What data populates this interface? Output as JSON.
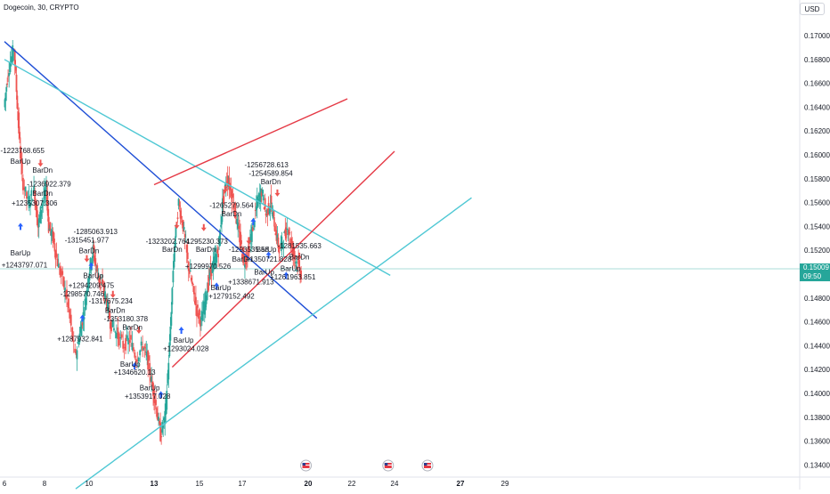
{
  "header": {
    "title": "Dogecoin, 30, CRYPTO",
    "currency": "USD"
  },
  "price_tag": {
    "price": "0.15009",
    "countdown": "09:50"
  },
  "colors": {
    "up": "#26a69a",
    "down": "#ef5350",
    "blue_line": "#1f4fd6",
    "cyan_line": "#4fc8d4",
    "red_line": "#e53945",
    "arrow_up": "#2962ff",
    "arrow_down": "#ef5350"
  },
  "chart_data": {
    "type": "line",
    "title": "Dogecoin, 30, CRYPTO",
    "xlabel": "",
    "ylabel": "",
    "x_ticks": [
      "6",
      "8",
      "10",
      "13",
      "15",
      "17",
      "20",
      "22",
      "24",
      "27",
      "29"
    ],
    "y_ticks": [
      "0.17000",
      "0.16800",
      "0.16600",
      "0.16400",
      "0.16200",
      "0.16000",
      "0.15800",
      "0.15600",
      "0.15400",
      "0.15200",
      "0.15000",
      "0.14800",
      "0.14600",
      "0.14400",
      "0.14200",
      "0.14000",
      "0.13800",
      "0.13600",
      "0.13400"
    ],
    "ylim": [
      0.133,
      0.1712
    ],
    "price_path_days": [
      [
        6.0,
        0.164
      ],
      [
        6.2,
        0.167
      ],
      [
        6.5,
        0.169
      ],
      [
        6.7,
        0.163
      ],
      [
        6.9,
        0.158
      ],
      [
        7.2,
        0.156
      ],
      [
        7.5,
        0.157
      ],
      [
        7.7,
        0.154
      ],
      [
        7.9,
        0.156
      ],
      [
        8.1,
        0.157
      ],
      [
        8.2,
        0.154
      ],
      [
        8.4,
        0.153
      ],
      [
        8.6,
        0.151
      ],
      [
        8.9,
        0.149
      ],
      [
        9.1,
        0.147
      ],
      [
        9.4,
        0.143
      ],
      [
        9.6,
        0.145
      ],
      [
        9.8,
        0.147
      ],
      [
        10.0,
        0.15
      ],
      [
        10.2,
        0.152
      ],
      [
        10.4,
        0.15
      ],
      [
        10.6,
        0.149
      ],
      [
        10.8,
        0.148
      ],
      [
        11.0,
        0.146
      ],
      [
        11.3,
        0.145
      ],
      [
        11.6,
        0.144
      ],
      [
        11.9,
        0.1445
      ],
      [
        12.2,
        0.143
      ],
      [
        12.5,
        0.144
      ],
      [
        12.7,
        0.143
      ],
      [
        12.9,
        0.141
      ],
      [
        13.1,
        0.139
      ],
      [
        13.3,
        0.1365
      ],
      [
        13.5,
        0.138
      ],
      [
        13.7,
        0.144
      ],
      [
        13.9,
        0.152
      ],
      [
        14.1,
        0.156
      ],
      [
        14.3,
        0.154
      ],
      [
        14.5,
        0.151
      ],
      [
        14.7,
        0.149
      ],
      [
        14.9,
        0.147
      ],
      [
        15.1,
        0.146
      ],
      [
        15.3,
        0.148
      ],
      [
        15.5,
        0.15
      ],
      [
        15.7,
        0.151
      ],
      [
        15.9,
        0.152
      ],
      [
        16.1,
        0.156
      ],
      [
        16.3,
        0.158
      ],
      [
        16.5,
        0.157
      ],
      [
        16.7,
        0.155
      ],
      [
        16.9,
        0.153
      ],
      [
        17.1,
        0.151
      ],
      [
        17.3,
        0.152
      ],
      [
        17.5,
        0.154
      ],
      [
        17.7,
        0.156
      ],
      [
        17.9,
        0.157
      ],
      [
        18.1,
        0.155
      ],
      [
        18.3,
        0.156
      ],
      [
        18.5,
        0.154
      ],
      [
        18.7,
        0.152
      ],
      [
        18.9,
        0.153
      ],
      [
        19.1,
        0.154
      ],
      [
        19.3,
        0.152
      ],
      [
        19.5,
        0.151
      ],
      [
        19.7,
        0.15
      ]
    ],
    "trendlines_days": [
      {
        "color": "blue",
        "from": [
          6.0,
          0.1695
        ],
        "to": [
          20.4,
          0.1463
        ]
      },
      {
        "color": "cyan",
        "from": [
          6.0,
          0.168
        ],
        "to": [
          23.8,
          0.1499
        ]
      },
      {
        "color": "cyan",
        "from": [
          9.4,
          0.132
        ],
        "to": [
          27.5,
          0.1564
        ]
      },
      {
        "color": "red",
        "from": [
          13.0,
          0.1575
        ],
        "to": [
          21.8,
          0.1647
        ]
      },
      {
        "color": "red",
        "from": [
          13.8,
          0.1422
        ],
        "to": [
          24.0,
          0.1603
        ]
      }
    ],
    "annotations": [
      {
        "text": "-1223768.655",
        "x": 6.9,
        "y": 0.16015
      },
      {
        "text": "BarUp",
        "x": 6.8,
        "y": 0.15925
      },
      {
        "text": "BarDn",
        "x": 7.9,
        "y": 0.1585
      },
      {
        "text": "-1236922.379",
        "x": 8.2,
        "y": 0.15735
      },
      {
        "text": "BarDn",
        "x": 7.9,
        "y": 0.15655
      },
      {
        "text": "+1235307.306",
        "x": 7.5,
        "y": 0.15575
      },
      {
        "text": "BarUp",
        "x": 6.8,
        "y": 0.15155
      },
      {
        "text": "+1243797.071",
        "x": 7.0,
        "y": 0.15055
      },
      {
        "text": "-1285063.913",
        "x": 10.3,
        "y": 0.15335
      },
      {
        "text": "-1315451.977",
        "x": 9.9,
        "y": 0.15265
      },
      {
        "text": "BarDn",
        "x": 10.0,
        "y": 0.15175
      },
      {
        "text": "BarUp",
        "x": 10.2,
        "y": 0.14965
      },
      {
        "text": "+1294209.475",
        "x": 10.1,
        "y": 0.14885
      },
      {
        "text": "-1298570.746",
        "x": 9.7,
        "y": 0.14815
      },
      {
        "text": "-1317675.234",
        "x": 11.0,
        "y": 0.14755
      },
      {
        "text": "BarDn",
        "x": 11.2,
        "y": 0.14675
      },
      {
        "text": "-1353180.378",
        "x": 11.7,
        "y": 0.14605
      },
      {
        "text": "BarDn",
        "x": 12.0,
        "y": 0.14535
      },
      {
        "text": "+1287932.841",
        "x": 9.6,
        "y": 0.14435
      },
      {
        "text": "BarUp",
        "x": 11.9,
        "y": 0.14225
      },
      {
        "text": "+1346620.13",
        "x": 12.1,
        "y": 0.14155
      },
      {
        "text": "BarUp",
        "x": 12.8,
        "y": 0.14025
      },
      {
        "text": "+1353917.028",
        "x": 12.7,
        "y": 0.13955
      },
      {
        "text": "-1323202.764",
        "x": 13.6,
        "y": 0.15255
      },
      {
        "text": "BarDn",
        "x": 13.8,
        "y": 0.15185
      },
      {
        "text": "-1295230.373",
        "x": 15.3,
        "y": 0.15255
      },
      {
        "text": "BarDn",
        "x": 15.3,
        "y": 0.15185
      },
      {
        "text": "-1265279.564",
        "x": 16.5,
        "y": 0.15555
      },
      {
        "text": "BarDn",
        "x": 16.5,
        "y": 0.15485
      },
      {
        "text": "+1299970.526",
        "x": 15.4,
        "y": 0.15045
      },
      {
        "text": "BarUp",
        "x": 16.0,
        "y": 0.14865
      },
      {
        "text": "+1279152.492",
        "x": 16.5,
        "y": 0.14795
      },
      {
        "text": "BarUp",
        "x": 14.3,
        "y": 0.14425
      },
      {
        "text": "+1293024.028",
        "x": 14.4,
        "y": 0.14355
      },
      {
        "text": "-1256728.613",
        "x": 18.1,
        "y": 0.15895
      },
      {
        "text": "-1254589.854",
        "x": 18.3,
        "y": 0.15825
      },
      {
        "text": "BarDn",
        "x": 18.3,
        "y": 0.15755
      },
      {
        "text": "-1293535.58",
        "x": 17.3,
        "y": 0.15185
      },
      {
        "text": "BarUp",
        "x": 18.1,
        "y": 0.15185
      },
      {
        "text": "BarDn",
        "x": 17.0,
        "y": 0.15105
      },
      {
        "text": "+1350721.828",
        "x": 18.2,
        "y": 0.15105
      },
      {
        "text": "BarUp",
        "x": 18.0,
        "y": 0.14995
      },
      {
        "text": "+1338671.913",
        "x": 17.4,
        "y": 0.14915
      },
      {
        "text": "-1281535.663",
        "x": 19.6,
        "y": 0.15215
      },
      {
        "text": "BarDn",
        "x": 19.6,
        "y": 0.15125
      },
      {
        "text": "BarUp",
        "x": 19.2,
        "y": 0.15025
      },
      {
        "text": "+1261963.851",
        "x": 19.3,
        "y": 0.14955
      }
    ],
    "arrows_up_days": [
      [
        6.8,
        0.1543
      ],
      [
        10.1,
        0.151
      ],
      [
        9.7,
        0.1466
      ],
      [
        12.1,
        0.1426
      ],
      [
        13.3,
        0.1402
      ],
      [
        14.2,
        0.1456
      ],
      [
        15.8,
        0.1493
      ],
      [
        17.5,
        0.1547
      ],
      [
        18.2,
        0.1519
      ],
      [
        19.0,
        0.1502
      ]
    ],
    "arrows_down_days": [
      [
        7.8,
        0.159
      ],
      [
        9.9,
        0.151
      ],
      [
        11.1,
        0.148
      ],
      [
        12.3,
        0.145
      ],
      [
        14.0,
        0.1538
      ],
      [
        15.2,
        0.1536
      ],
      [
        16.2,
        0.1568
      ],
      [
        17.3,
        0.1525
      ],
      [
        18.6,
        0.1565
      ],
      [
        19.6,
        0.1512
      ]
    ],
    "event_markers_days": [
      19.9,
      23.7,
      25.5
    ]
  }
}
